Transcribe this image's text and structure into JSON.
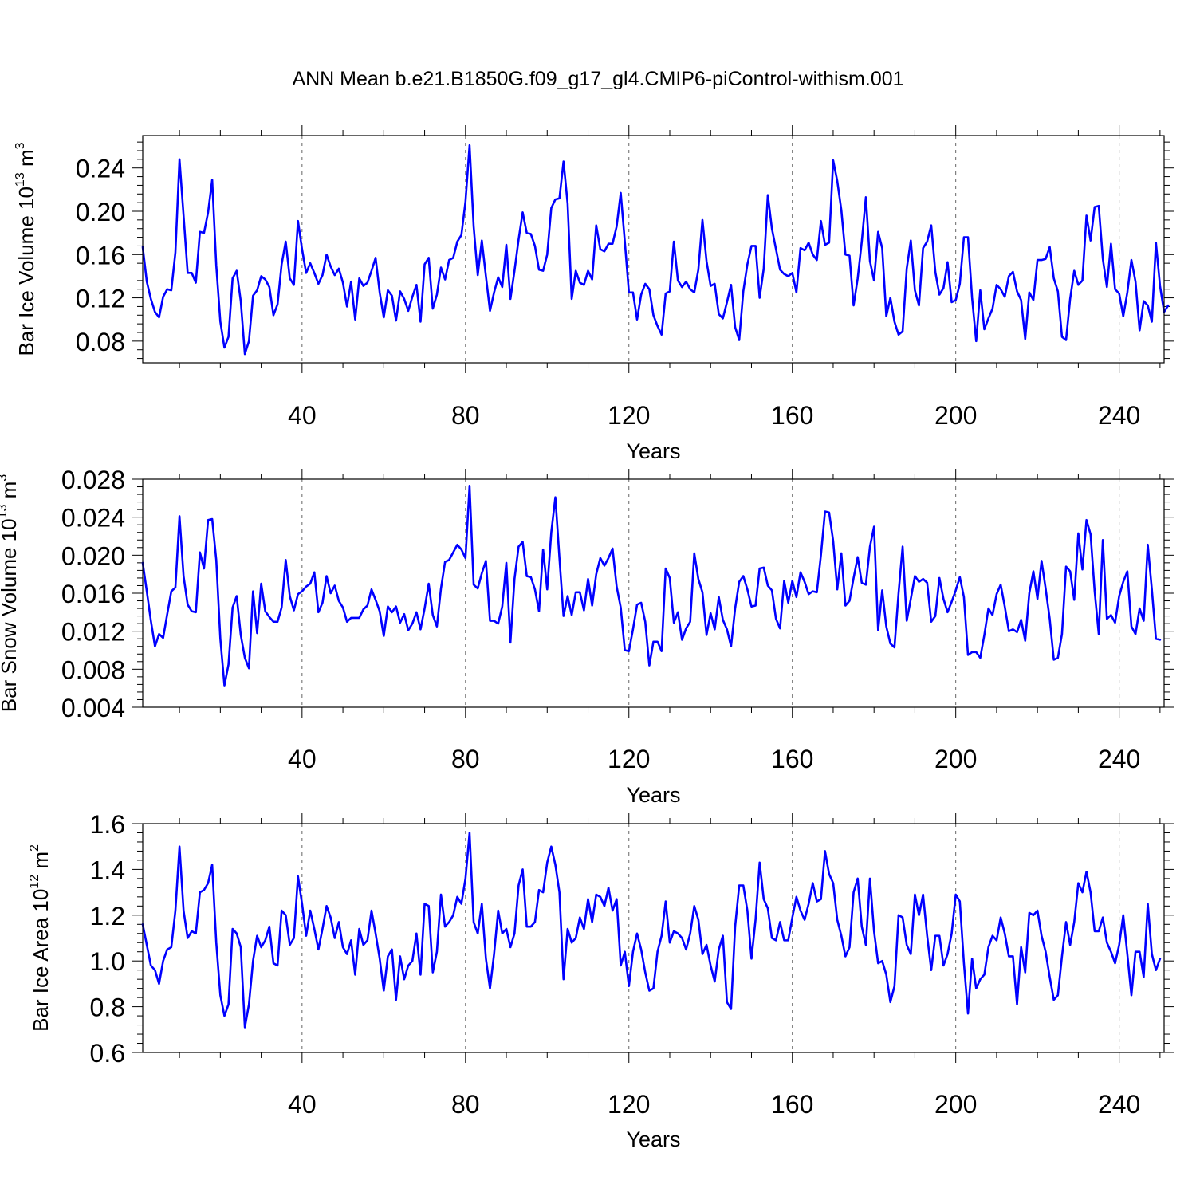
{
  "figure": {
    "title": "ANN Mean b.e21.B1850G.f09_g17_gl4.CMIP6-piControl-withism.001"
  },
  "colors": {
    "line": "#0000ff",
    "axis": "#000000",
    "grid": "#666666"
  },
  "chart_data": [
    {
      "type": "line",
      "ylabel": "Bar Ice Volume 10",
      "ylabel_exp": "13",
      "ylabel_unit": " m",
      "ylabel_unit_exp": "3",
      "xlabel": "Years",
      "xlim": [
        1,
        251
      ],
      "ylim": [
        0.06,
        0.27
      ],
      "xticks": [
        40,
        80,
        120,
        160,
        200,
        240
      ],
      "xtick_labels": [
        "40",
        "80",
        "120",
        "160",
        "200",
        "240"
      ],
      "yticks": [
        0.08,
        0.12,
        0.16,
        0.2,
        0.24
      ],
      "ytick_labels": [
        "0.08",
        "0.12",
        "0.16",
        "0.20",
        "0.24"
      ],
      "values": [
        0.167,
        0.135,
        0.119,
        0.107,
        0.102,
        0.121,
        0.128,
        0.127,
        0.162,
        0.248,
        0.196,
        0.143,
        0.143,
        0.134,
        0.181,
        0.18,
        0.199,
        0.229,
        0.15,
        0.098,
        0.074,
        0.084,
        0.138,
        0.145,
        0.117,
        0.068,
        0.08,
        0.122,
        0.127,
        0.14,
        0.137,
        0.13,
        0.104,
        0.114,
        0.151,
        0.172,
        0.138,
        0.132,
        0.191,
        0.165,
        0.143,
        0.152,
        0.143,
        0.133,
        0.141,
        0.16,
        0.149,
        0.141,
        0.147,
        0.134,
        0.112,
        0.135,
        0.1,
        0.138,
        0.131,
        0.134,
        0.145,
        0.157,
        0.125,
        0.102,
        0.127,
        0.122,
        0.099,
        0.126,
        0.119,
        0.108,
        0.121,
        0.132,
        0.098,
        0.151,
        0.157,
        0.11,
        0.123,
        0.148,
        0.137,
        0.155,
        0.157,
        0.172,
        0.178,
        0.209,
        0.261,
        0.186,
        0.141,
        0.173,
        0.14,
        0.108,
        0.125,
        0.139,
        0.13,
        0.169,
        0.119,
        0.145,
        0.174,
        0.199,
        0.18,
        0.179,
        0.168,
        0.146,
        0.145,
        0.16,
        0.203,
        0.211,
        0.212,
        0.246,
        0.207,
        0.119,
        0.145,
        0.134,
        0.132,
        0.145,
        0.137,
        0.187,
        0.165,
        0.163,
        0.17,
        0.17,
        0.186,
        0.217,
        0.172,
        0.125,
        0.125,
        0.1,
        0.123,
        0.133,
        0.128,
        0.104,
        0.094,
        0.086,
        0.124,
        0.126,
        0.172,
        0.136,
        0.13,
        0.135,
        0.128,
        0.125,
        0.146,
        0.192,
        0.154,
        0.131,
        0.133,
        0.105,
        0.101,
        0.116,
        0.132,
        0.093,
        0.081,
        0.126,
        0.151,
        0.168,
        0.168,
        0.12,
        0.147,
        0.215,
        0.184,
        0.165,
        0.146,
        0.142,
        0.14,
        0.143,
        0.125,
        0.166,
        0.164,
        0.171,
        0.16,
        0.155,
        0.191,
        0.169,
        0.171,
        0.247,
        0.228,
        0.201,
        0.16,
        0.159,
        0.113,
        0.138,
        0.172,
        0.213,
        0.154,
        0.136,
        0.181,
        0.166,
        0.103,
        0.12,
        0.098,
        0.086,
        0.089,
        0.147,
        0.173,
        0.127,
        0.113,
        0.166,
        0.172,
        0.187,
        0.144,
        0.123,
        0.129,
        0.153,
        0.116,
        0.118,
        0.133,
        0.176,
        0.176,
        0.12,
        0.08,
        0.127,
        0.091,
        0.101,
        0.11,
        0.132,
        0.128,
        0.121,
        0.14,
        0.144,
        0.126,
        0.118,
        0.082,
        0.125,
        0.118,
        0.155,
        0.155,
        0.156,
        0.167,
        0.138,
        0.126,
        0.084,
        0.081,
        0.119,
        0.145,
        0.132,
        0.136,
        0.196,
        0.173,
        0.204,
        0.205,
        0.156,
        0.13,
        0.17,
        0.128,
        0.124,
        0.103,
        0.125,
        0.155,
        0.135,
        0.09,
        0.117,
        0.113,
        0.098,
        0.171,
        0.131,
        0.107,
        0.113
      ]
    },
    {
      "type": "line",
      "ylabel": "Bar Snow Volume 10",
      "ylabel_exp": "13",
      "ylabel_unit": " m",
      "ylabel_unit_exp": "3",
      "xlabel": "Years",
      "xlim": [
        1,
        251
      ],
      "ylim": [
        0.004,
        0.028
      ],
      "xticks": [
        40,
        80,
        120,
        160,
        200,
        240
      ],
      "xtick_labels": [
        "40",
        "80",
        "120",
        "160",
        "200",
        "240"
      ],
      "yticks": [
        0.004,
        0.008,
        0.012,
        0.016,
        0.02,
        0.024,
        0.028
      ],
      "ytick_labels": [
        "0.004",
        "0.008",
        "0.012",
        "0.016",
        "0.020",
        "0.024",
        "0.028"
      ],
      "values": [
        0.0192,
        0.0162,
        0.0131,
        0.0104,
        0.0117,
        0.0113,
        0.0138,
        0.0162,
        0.0166,
        0.0241,
        0.0178,
        0.0148,
        0.0141,
        0.014,
        0.0203,
        0.0186,
        0.0237,
        0.0238,
        0.0195,
        0.0112,
        0.0063,
        0.0085,
        0.0145,
        0.0157,
        0.0116,
        0.0092,
        0.0081,
        0.0162,
        0.0118,
        0.017,
        0.0141,
        0.0135,
        0.013,
        0.013,
        0.0145,
        0.0195,
        0.0157,
        0.0142,
        0.0159,
        0.0162,
        0.0167,
        0.017,
        0.0182,
        0.014,
        0.015,
        0.0178,
        0.016,
        0.0168,
        0.0152,
        0.0145,
        0.013,
        0.0134,
        0.0134,
        0.0134,
        0.0143,
        0.0147,
        0.0164,
        0.0153,
        0.0141,
        0.0115,
        0.0146,
        0.014,
        0.0146,
        0.0129,
        0.0138,
        0.0121,
        0.0128,
        0.014,
        0.0122,
        0.0144,
        0.017,
        0.0137,
        0.0125,
        0.0165,
        0.0193,
        0.0195,
        0.0203,
        0.0211,
        0.0206,
        0.0197,
        0.0273,
        0.0169,
        0.0165,
        0.0181,
        0.0194,
        0.0131,
        0.0131,
        0.0128,
        0.0146,
        0.0192,
        0.0108,
        0.0175,
        0.0209,
        0.0214,
        0.0178,
        0.0177,
        0.0164,
        0.0141,
        0.0206,
        0.0164,
        0.0224,
        0.0261,
        0.0197,
        0.0136,
        0.0157,
        0.0137,
        0.0161,
        0.0161,
        0.0142,
        0.0175,
        0.0147,
        0.018,
        0.0197,
        0.0189,
        0.0197,
        0.0207,
        0.0167,
        0.0145,
        0.01,
        0.0099,
        0.0122,
        0.0148,
        0.015,
        0.013,
        0.0084,
        0.0109,
        0.0109,
        0.0099,
        0.0186,
        0.0176,
        0.0129,
        0.014,
        0.0111,
        0.0123,
        0.013,
        0.0202,
        0.0175,
        0.0161,
        0.0116,
        0.0139,
        0.0122,
        0.0156,
        0.0132,
        0.0122,
        0.0104,
        0.0144,
        0.0172,
        0.0178,
        0.0164,
        0.0146,
        0.0147,
        0.0186,
        0.0187,
        0.0168,
        0.0163,
        0.0133,
        0.0123,
        0.0173,
        0.015,
        0.0173,
        0.0156,
        0.0182,
        0.0172,
        0.0159,
        0.0162,
        0.0161,
        0.02,
        0.0246,
        0.0245,
        0.0215,
        0.0164,
        0.0202,
        0.0147,
        0.0152,
        0.0176,
        0.0198,
        0.0171,
        0.0169,
        0.0209,
        0.023,
        0.0121,
        0.0163,
        0.0125,
        0.0107,
        0.0103,
        0.016,
        0.0209,
        0.0131,
        0.0154,
        0.0178,
        0.0172,
        0.0175,
        0.0171,
        0.013,
        0.0136,
        0.0176,
        0.0154,
        0.014,
        0.0151,
        0.0163,
        0.0177,
        0.0156,
        0.0095,
        0.0098,
        0.0098,
        0.0092,
        0.0116,
        0.0144,
        0.0137,
        0.0159,
        0.0169,
        0.0146,
        0.012,
        0.0122,
        0.0119,
        0.0132,
        0.011,
        0.016,
        0.0183,
        0.0154,
        0.0194,
        0.0165,
        0.0133,
        0.009,
        0.0092,
        0.0117,
        0.0188,
        0.0183,
        0.0153,
        0.0223,
        0.0185,
        0.0237,
        0.0222,
        0.0162,
        0.0117,
        0.0216,
        0.0133,
        0.0137,
        0.0129,
        0.0157,
        0.0172,
        0.0183,
        0.0125,
        0.0117,
        0.0144,
        0.0131,
        0.0211,
        0.0164,
        0.0112,
        0.0111
      ]
    },
    {
      "type": "line",
      "ylabel": "Bar Ice Area 10",
      "ylabel_exp": "12",
      "ylabel_unit": " m",
      "ylabel_unit_exp": "2",
      "xlabel": "Years",
      "xlim": [
        1,
        251
      ],
      "ylim": [
        0.6,
        1.6
      ],
      "xticks": [
        40,
        80,
        120,
        160,
        200,
        240
      ],
      "xtick_labels": [
        "40",
        "80",
        "120",
        "160",
        "200",
        "240"
      ],
      "yticks": [
        0.6,
        0.8,
        1.0,
        1.2,
        1.4,
        1.6
      ],
      "ytick_labels": [
        "0.6",
        "0.8",
        "1.0",
        "1.2",
        "1.4",
        "1.6"
      ],
      "values": [
        1.16,
        1.07,
        0.98,
        0.96,
        0.9,
        1.0,
        1.05,
        1.06,
        1.22,
        1.5,
        1.22,
        1.1,
        1.13,
        1.12,
        1.3,
        1.31,
        1.34,
        1.42,
        1.08,
        0.85,
        0.76,
        0.81,
        1.14,
        1.12,
        1.06,
        0.71,
        0.81,
        1.0,
        1.11,
        1.06,
        1.09,
        1.15,
        0.99,
        0.98,
        1.22,
        1.2,
        1.07,
        1.1,
        1.37,
        1.25,
        1.11,
        1.22,
        1.14,
        1.05,
        1.14,
        1.24,
        1.19,
        1.1,
        1.17,
        1.06,
        1.03,
        1.09,
        0.94,
        1.14,
        1.07,
        1.09,
        1.22,
        1.12,
        1.01,
        0.87,
        1.02,
        1.05,
        0.83,
        1.02,
        0.92,
        0.98,
        1.0,
        1.12,
        0.94,
        1.25,
        1.24,
        0.95,
        1.04,
        1.29,
        1.15,
        1.17,
        1.2,
        1.28,
        1.25,
        1.36,
        1.56,
        1.17,
        1.12,
        1.25,
        1.01,
        0.88,
        1.03,
        1.22,
        1.12,
        1.14,
        1.06,
        1.12,
        1.33,
        1.4,
        1.15,
        1.15,
        1.17,
        1.31,
        1.3,
        1.43,
        1.5,
        1.42,
        1.3,
        0.92,
        1.14,
        1.08,
        1.1,
        1.19,
        1.14,
        1.27,
        1.17,
        1.29,
        1.28,
        1.24,
        1.32,
        1.22,
        1.27,
        0.98,
        1.04,
        0.89,
        1.04,
        1.12,
        1.05,
        0.95,
        0.87,
        0.88,
        1.04,
        1.11,
        1.26,
        1.08,
        1.13,
        1.12,
        1.1,
        1.05,
        1.12,
        1.24,
        1.18,
        1.03,
        1.07,
        0.98,
        0.91,
        1.05,
        1.11,
        0.82,
        0.79,
        1.15,
        1.33,
        1.33,
        1.22,
        1.01,
        1.18,
        1.43,
        1.27,
        1.23,
        1.1,
        1.09,
        1.17,
        1.09,
        1.09,
        1.19,
        1.28,
        1.22,
        1.18,
        1.25,
        1.34,
        1.26,
        1.27,
        1.48,
        1.38,
        1.34,
        1.18,
        1.11,
        1.02,
        1.06,
        1.3,
        1.36,
        1.15,
        1.07,
        1.36,
        1.13,
        0.99,
        1.0,
        0.94,
        0.82,
        0.89,
        1.2,
        1.19,
        1.07,
        1.03,
        1.29,
        1.2,
        1.29,
        1.11,
        0.96,
        1.11,
        1.11,
        0.98,
        1.03,
        1.12,
        1.29,
        1.26,
        0.99,
        0.77,
        1.01,
        0.88,
        0.92,
        0.94,
        1.06,
        1.11,
        1.09,
        1.19,
        1.12,
        1.02,
        1.02,
        0.81,
        1.06,
        0.95,
        1.21,
        1.2,
        1.22,
        1.11,
        1.04,
        0.93,
        0.83,
        0.85,
        1.02,
        1.17,
        1.07,
        1.17,
        1.34,
        1.3,
        1.39,
        1.3,
        1.13,
        1.13,
        1.19,
        1.08,
        1.04,
        0.99,
        1.07,
        1.2,
        1.03,
        0.85,
        1.04,
        1.04,
        0.93,
        1.25,
        1.03,
        0.96,
        1.01
      ]
    }
  ]
}
